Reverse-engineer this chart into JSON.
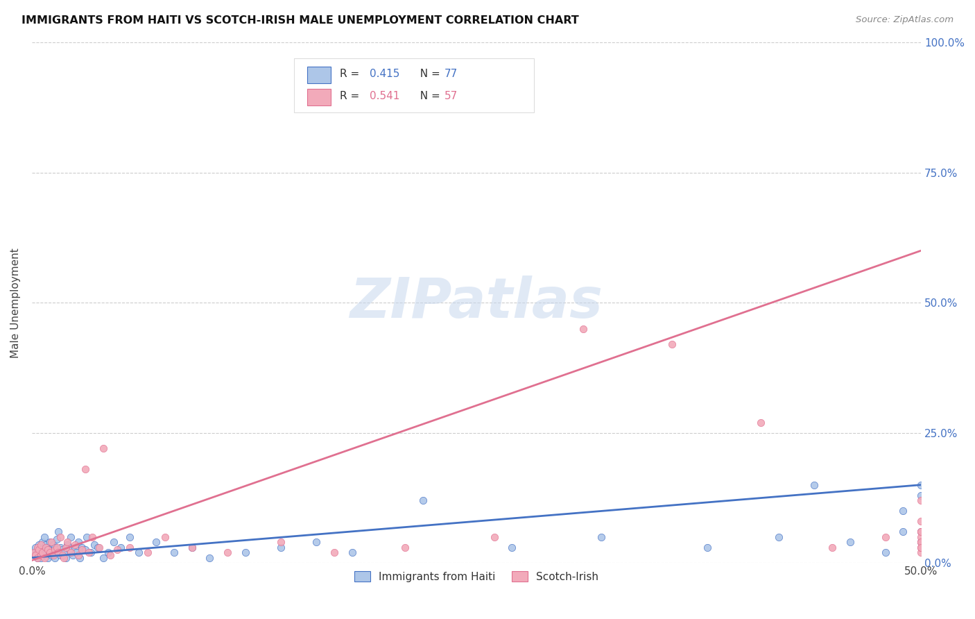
{
  "title": "IMMIGRANTS FROM HAITI VS SCOTCH-IRISH MALE UNEMPLOYMENT CORRELATION CHART",
  "source": "Source: ZipAtlas.com",
  "ylabel_label": "Male Unemployment",
  "right_yticks_vals": [
    0.0,
    0.25,
    0.5,
    0.75,
    1.0
  ],
  "right_yticks_labels": [
    "0.0%",
    "25.0%",
    "50.0%",
    "75.0%",
    "100.0%"
  ],
  "xlim": [
    0.0,
    0.5
  ],
  "ylim": [
    0.0,
    1.0
  ],
  "watermark": "ZIPatlas",
  "color_haiti": "#adc6e8",
  "color_scotch": "#f2aaba",
  "color_line_haiti": "#4472c4",
  "color_line_scotch": "#e07090",
  "haiti_scatter_x": [
    0.001,
    0.002,
    0.002,
    0.003,
    0.003,
    0.004,
    0.004,
    0.005,
    0.005,
    0.005,
    0.006,
    0.006,
    0.007,
    0.007,
    0.007,
    0.008,
    0.008,
    0.009,
    0.009,
    0.01,
    0.01,
    0.011,
    0.011,
    0.012,
    0.012,
    0.013,
    0.013,
    0.014,
    0.015,
    0.015,
    0.016,
    0.016,
    0.017,
    0.018,
    0.019,
    0.02,
    0.021,
    0.022,
    0.023,
    0.024,
    0.025,
    0.026,
    0.027,
    0.028,
    0.03,
    0.031,
    0.033,
    0.035,
    0.037,
    0.04,
    0.043,
    0.046,
    0.05,
    0.055,
    0.06,
    0.07,
    0.08,
    0.09,
    0.1,
    0.12,
    0.14,
    0.16,
    0.18,
    0.22,
    0.27,
    0.32,
    0.38,
    0.42,
    0.44,
    0.46,
    0.48,
    0.49,
    0.49,
    0.5,
    0.5,
    0.5,
    0.5
  ],
  "haiti_scatter_y": [
    0.02,
    0.015,
    0.03,
    0.01,
    0.025,
    0.02,
    0.035,
    0.01,
    0.015,
    0.03,
    0.02,
    0.04,
    0.015,
    0.025,
    0.05,
    0.02,
    0.035,
    0.01,
    0.03,
    0.02,
    0.04,
    0.015,
    0.025,
    0.02,
    0.035,
    0.01,
    0.03,
    0.045,
    0.02,
    0.06,
    0.015,
    0.03,
    0.025,
    0.02,
    0.01,
    0.035,
    0.025,
    0.05,
    0.015,
    0.03,
    0.02,
    0.04,
    0.01,
    0.03,
    0.025,
    0.05,
    0.02,
    0.035,
    0.03,
    0.01,
    0.02,
    0.04,
    0.03,
    0.05,
    0.02,
    0.04,
    0.02,
    0.03,
    0.01,
    0.02,
    0.03,
    0.04,
    0.02,
    0.12,
    0.03,
    0.05,
    0.03,
    0.05,
    0.15,
    0.04,
    0.02,
    0.06,
    0.1,
    0.13,
    0.04,
    0.06,
    0.15
  ],
  "scotch_scatter_x": [
    0.001,
    0.002,
    0.003,
    0.003,
    0.004,
    0.005,
    0.005,
    0.006,
    0.007,
    0.008,
    0.009,
    0.01,
    0.011,
    0.012,
    0.013,
    0.014,
    0.015,
    0.016,
    0.017,
    0.018,
    0.019,
    0.02,
    0.022,
    0.024,
    0.026,
    0.028,
    0.03,
    0.032,
    0.034,
    0.038,
    0.04,
    0.044,
    0.048,
    0.055,
    0.065,
    0.075,
    0.09,
    0.11,
    0.14,
    0.17,
    0.21,
    0.26,
    0.31,
    0.36,
    0.41,
    0.45,
    0.48,
    0.5,
    0.5,
    0.5,
    0.5,
    0.5,
    0.5,
    0.5,
    0.5,
    0.5,
    0.5
  ],
  "scotch_scatter_y": [
    0.02,
    0.015,
    0.03,
    0.01,
    0.025,
    0.015,
    0.035,
    0.02,
    0.01,
    0.03,
    0.025,
    0.02,
    0.04,
    0.015,
    0.025,
    0.03,
    0.02,
    0.05,
    0.015,
    0.01,
    0.03,
    0.04,
    0.02,
    0.035,
    0.015,
    0.025,
    0.18,
    0.02,
    0.05,
    0.03,
    0.22,
    0.015,
    0.025,
    0.03,
    0.02,
    0.05,
    0.03,
    0.02,
    0.04,
    0.02,
    0.03,
    0.05,
    0.45,
    0.42,
    0.27,
    0.03,
    0.05,
    0.02,
    0.03,
    0.04,
    0.06,
    0.12,
    0.05,
    0.04,
    0.06,
    0.03,
    0.08
  ],
  "haiti_trend": [
    0.0,
    0.5,
    0.01,
    0.15
  ],
  "scotch_trend": [
    0.0,
    0.5,
    0.005,
    0.6
  ]
}
